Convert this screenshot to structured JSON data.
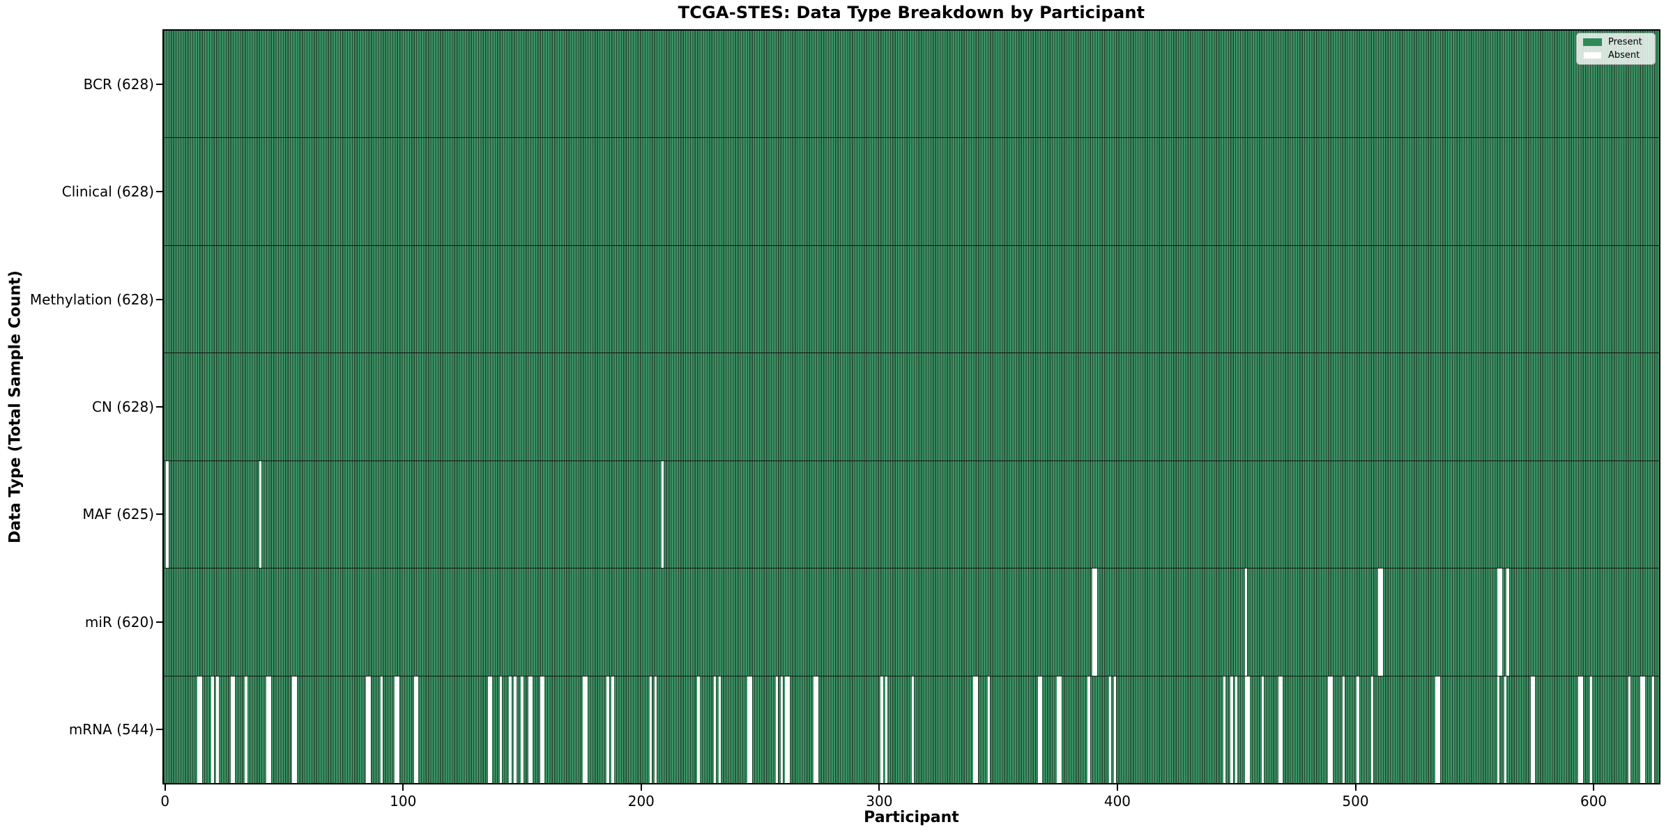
{
  "title": "TCGA-STES: Data Type Breakdown by Participant",
  "x_axis": {
    "label": "Participant",
    "ticks": [
      "0",
      "100",
      "200",
      "300",
      "400",
      "500",
      "600"
    ]
  },
  "y_axis": {
    "label": "Data Type (Total Sample Count)"
  },
  "legend": {
    "items": [
      {
        "label": "Present",
        "color": "#2e8b57"
      },
      {
        "label": "Absent",
        "color": "#ffffff"
      }
    ]
  },
  "colors": {
    "present_fill": "#3b9265",
    "bar_edge": "#25452f",
    "absent_fill": "#ffffff",
    "separator": "#121212",
    "background": "#ffffff"
  },
  "chart_data": {
    "type": "heatmap",
    "title": "TCGA-STES: Data Type Breakdown by Participant",
    "xlabel": "Participant",
    "ylabel": "Data Type (Total Sample Count)",
    "n_participants": 628,
    "x_range": [
      0,
      628
    ],
    "x_ticks": [
      0,
      100,
      200,
      300,
      400,
      500,
      600
    ],
    "legend": [
      "Present",
      "Absent"
    ],
    "legend_position": "upper right",
    "grid": false,
    "rows": [
      {
        "data_type": "BCR",
        "label": "BCR (628)",
        "present_count": 628,
        "absent_participants": []
      },
      {
        "data_type": "Clinical",
        "label": "Clinical (628)",
        "present_count": 628,
        "absent_participants": []
      },
      {
        "data_type": "Methylation",
        "label": "Methylation (628)",
        "present_count": 628,
        "absent_participants": []
      },
      {
        "data_type": "CN",
        "label": "CN (628)",
        "present_count": 628,
        "absent_participants": []
      },
      {
        "data_type": "MAF",
        "label": "MAF (625)",
        "present_count": 625,
        "absent_participants": [
          1,
          40,
          209
        ]
      },
      {
        "data_type": "miR",
        "label": "miR (620)",
        "present_count": 620,
        "absent_participants": [
          390,
          391,
          454,
          510,
          511,
          560,
          561,
          564
        ]
      },
      {
        "data_type": "mRNA",
        "label": "mRNA (544)",
        "present_count": 544,
        "absent_participants": [
          14,
          15,
          20,
          22,
          28,
          29,
          34,
          43,
          44,
          54,
          55,
          85,
          86,
          91,
          97,
          98,
          105,
          106,
          136,
          137,
          141,
          145,
          147,
          150,
          153,
          154,
          158,
          159,
          176,
          177,
          186,
          188,
          204,
          206,
          224,
          231,
          233,
          245,
          246,
          257,
          259,
          261,
          262,
          273,
          274,
          301,
          303,
          314,
          340,
          341,
          346,
          367,
          368,
          375,
          376,
          388,
          397,
          399,
          445,
          448,
          450,
          454,
          455,
          461,
          468,
          469,
          489,
          490,
          495,
          501,
          507,
          534,
          535,
          560,
          563,
          574,
          575,
          594,
          595,
          599,
          615,
          620,
          621,
          625
        ]
      }
    ]
  }
}
